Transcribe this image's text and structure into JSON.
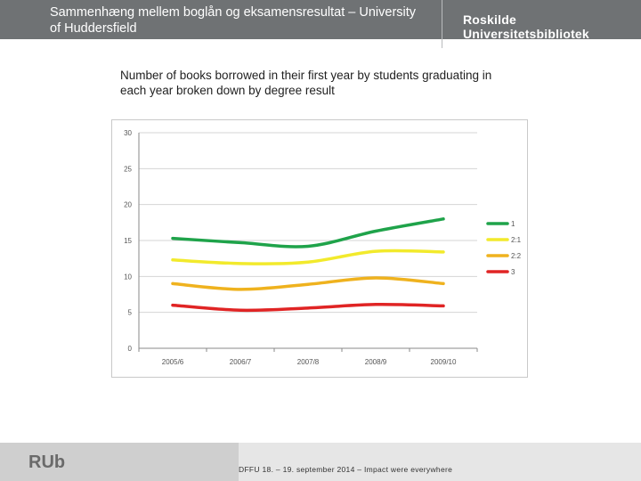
{
  "header": {
    "title": "Sammenhæng mellem boglån og eksamensresultat – University of Huddersfield",
    "logo": "Roskilde Universitetsbibliotek"
  },
  "subtitle": "Number of books borrowed in their first year by students graduating in each year broken down by degree result",
  "chart_data": {
    "type": "line",
    "title": "",
    "xlabel": "",
    "ylabel": "",
    "categories": [
      "2005/6",
      "2006/7",
      "2007/8",
      "2008/9",
      "2009/10"
    ],
    "ylim": [
      0,
      30
    ],
    "yticks": [
      "0",
      "5",
      "10",
      "15",
      "20",
      "25",
      "30"
    ],
    "grid": true,
    "legend_position": "right",
    "series": [
      {
        "name": "1",
        "color": "#1fa34a",
        "values": [
          15.3,
          14.7,
          14.2,
          16.3,
          18.0
        ]
      },
      {
        "name": "2:1",
        "color": "#f2ea2c",
        "values": [
          12.3,
          11.8,
          12.0,
          13.5,
          13.4
        ]
      },
      {
        "name": "2:2",
        "color": "#efb21e",
        "values": [
          9.0,
          8.2,
          8.9,
          9.8,
          9.0
        ]
      },
      {
        "name": "3",
        "color": "#e02424",
        "values": [
          6.0,
          5.3,
          5.6,
          6.1,
          5.9
        ]
      }
    ]
  },
  "footer": {
    "logo": "RUb",
    "text": "DFFU 18. – 19. september 2014 – Impact were everywhere"
  }
}
